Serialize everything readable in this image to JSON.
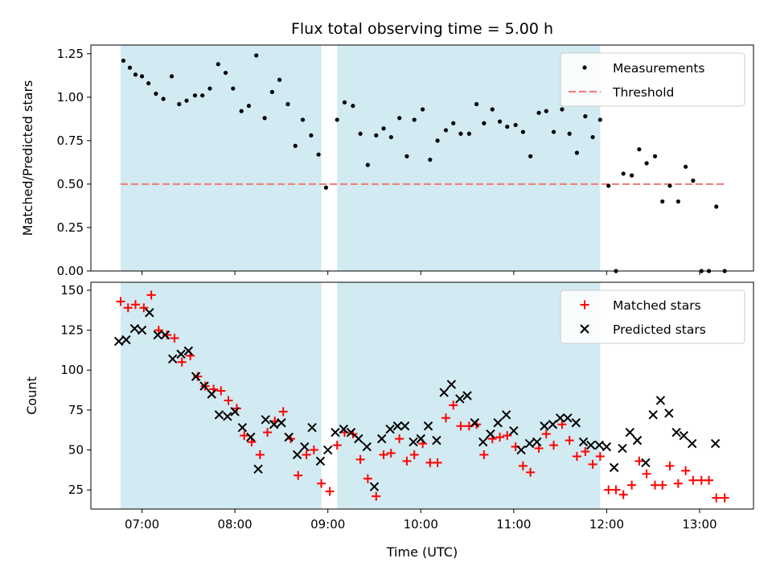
{
  "chart_data": {
    "title": "Flux total observing time = 5.00 h",
    "xlabel": "Time (UTC)",
    "x_ticks": [
      "07:00",
      "08:00",
      "09:00",
      "10:00",
      "11:00",
      "12:00",
      "13:00"
    ],
    "x_tick_values": [
      7,
      8,
      9,
      10,
      11,
      12,
      13
    ],
    "xlim": [
      6.45,
      13.58
    ],
    "shaded_intervals": [
      [
        6.77,
        8.93
      ],
      [
        9.1,
        11.93
      ]
    ],
    "colors": {
      "shade": "#add8e6",
      "measurement": "#000000",
      "threshold": "#f08080",
      "matched": "#ff0000",
      "predicted": "#000000"
    },
    "panels": [
      {
        "type": "scatter",
        "ylabel": "Matched/Predicted stars",
        "ylim": [
          0,
          1.3
        ],
        "y_ticks": [
          "0.00",
          "0.25",
          "0.50",
          "0.75",
          "1.00",
          "1.25"
        ],
        "y_tick_values": [
          0,
          0.25,
          0.5,
          0.75,
          1.0,
          1.25
        ],
        "legend_position": "top-right",
        "threshold": 0.5,
        "threshold_x_range": [
          6.77,
          13.28
        ],
        "legend": [
          "Measurements",
          "Threshold"
        ],
        "series": [
          {
            "name": "Measurements",
            "marker": "dot",
            "x": [
              6.8,
              6.87,
              6.93,
              7.0,
              7.07,
              7.15,
              7.23,
              7.32,
              7.4,
              7.48,
              7.57,
              7.65,
              7.73,
              7.82,
              7.9,
              7.98,
              8.07,
              8.15,
              8.23,
              8.32,
              8.4,
              8.48,
              8.57,
              8.65,
              8.73,
              8.82,
              8.9,
              8.98,
              9.1,
              9.18,
              9.27,
              9.35,
              9.43,
              9.52,
              9.6,
              9.68,
              9.77,
              9.85,
              9.93,
              10.02,
              10.1,
              10.18,
              10.27,
              10.35,
              10.43,
              10.52,
              10.6,
              10.68,
              10.77,
              10.85,
              10.93,
              11.02,
              11.1,
              11.18,
              11.27,
              11.35,
              11.43,
              11.52,
              11.6,
              11.68,
              11.77,
              11.85,
              11.93,
              12.02,
              12.1,
              12.18,
              12.27,
              12.35,
              12.43,
              12.52,
              12.6,
              12.68,
              12.77,
              12.85,
              12.93,
              13.02,
              13.1,
              13.18,
              13.27
            ],
            "y": [
              1.21,
              1.17,
              1.13,
              1.12,
              1.08,
              1.02,
              0.99,
              1.12,
              0.96,
              0.98,
              1.01,
              1.01,
              1.05,
              1.19,
              1.14,
              1.05,
              0.92,
              0.95,
              1.24,
              0.88,
              1.03,
              1.1,
              0.96,
              0.72,
              0.87,
              0.78,
              0.67,
              0.48,
              0.87,
              0.97,
              0.95,
              0.79,
              0.61,
              0.78,
              0.82,
              0.77,
              0.88,
              0.66,
              0.87,
              0.93,
              0.64,
              0.75,
              0.81,
              0.85,
              0.79,
              0.79,
              0.96,
              0.85,
              0.93,
              0.86,
              0.83,
              0.84,
              0.8,
              0.66,
              0.91,
              0.92,
              0.8,
              0.93,
              0.79,
              0.68,
              0.89,
              0.77,
              0.87,
              0.49,
              0.0,
              0.56,
              0.55,
              0.7,
              0.62,
              0.66,
              0.4,
              0.49,
              0.4,
              0.6,
              0.52,
              0.0,
              0.0,
              0.37,
              0.0
            ]
          }
        ]
      },
      {
        "type": "scatter",
        "ylabel": "Count",
        "ylim": [
          13,
          155
        ],
        "y_ticks": [
          "25",
          "50",
          "75",
          "100",
          "125",
          "150"
        ],
        "y_tick_values": [
          25,
          50,
          75,
          100,
          125,
          150
        ],
        "legend_position": "top-right",
        "legend": [
          "Matched stars",
          "Predicted stars"
        ],
        "series": [
          {
            "name": "Matched stars",
            "marker": "plus",
            "x": [
              6.77,
              6.85,
              6.93,
              7.02,
              7.1,
              7.18,
              7.27,
              7.35,
              7.43,
              7.52,
              7.6,
              7.68,
              7.77,
              7.85,
              7.93,
              8.02,
              8.1,
              8.18,
              8.27,
              8.35,
              8.43,
              8.52,
              8.6,
              8.68,
              8.77,
              8.85,
              8.93,
              9.02,
              9.1,
              9.18,
              9.27,
              9.35,
              9.43,
              9.52,
              9.6,
              9.68,
              9.77,
              9.85,
              9.93,
              10.02,
              10.1,
              10.18,
              10.27,
              10.35,
              10.43,
              10.52,
              10.6,
              10.68,
              10.77,
              10.85,
              10.93,
              11.02,
              11.1,
              11.18,
              11.27,
              11.35,
              11.43,
              11.52,
              11.6,
              11.68,
              11.77,
              11.85,
              11.93,
              12.02,
              12.1,
              12.18,
              12.27,
              12.35,
              12.43,
              12.52,
              12.6,
              12.68,
              12.77,
              12.85,
              12.93,
              13.02,
              13.1,
              13.18,
              13.27
            ],
            "y": [
              143,
              139,
              141,
              139,
              147,
              125,
              122,
              120,
              105,
              109,
              96,
              90,
              88,
              87,
              81,
              76,
              59,
              55,
              47,
              61,
              68,
              74,
              57,
              34,
              47,
              50,
              29,
              24,
              53,
              61,
              60,
              44,
              32,
              21,
              47,
              48,
              57,
              43,
              47,
              54,
              42,
              42,
              70,
              78,
              65,
              65,
              66,
              47,
              57,
              58,
              59,
              52,
              40,
              36,
              51,
              60,
              53,
              66,
              56,
              46,
              49,
              41,
              46,
              25,
              25,
              22,
              28,
              43,
              35,
              28,
              28,
              40,
              29,
              37,
              31,
              31,
              31,
              20,
              20
            ]
          },
          {
            "name": "Predicted stars",
            "marker": "x",
            "x": [
              6.75,
              6.83,
              6.92,
              7.0,
              7.08,
              7.17,
              7.25,
              7.33,
              7.42,
              7.5,
              7.58,
              7.67,
              7.75,
              7.83,
              7.92,
              8.0,
              8.08,
              8.17,
              8.25,
              8.33,
              8.42,
              8.5,
              8.58,
              8.67,
              8.75,
              8.83,
              8.92,
              9.0,
              9.08,
              9.17,
              9.25,
              9.33,
              9.42,
              9.5,
              9.58,
              9.67,
              9.75,
              9.83,
              9.92,
              10.0,
              10.08,
              10.17,
              10.25,
              10.33,
              10.42,
              10.5,
              10.58,
              10.67,
              10.75,
              10.83,
              10.92,
              11.0,
              11.08,
              11.17,
              11.25,
              11.33,
              11.42,
              11.5,
              11.58,
              11.67,
              11.75,
              11.83,
              11.92,
              12.0,
              12.08,
              12.17,
              12.25,
              12.33,
              12.42,
              12.5,
              12.58,
              12.67,
              12.75,
              12.83,
              12.92,
              13.17
            ],
            "y": [
              118,
              119,
              126,
              125,
              136,
              122,
              122,
              107,
              110,
              112,
              96,
              90,
              85,
              72,
              71,
              74,
              64,
              58,
              38,
              69,
              66,
              67,
              58,
              47,
              52,
              64,
              43,
              50,
              61,
              63,
              61,
              57,
              52,
              27,
              57,
              63,
              65,
              65,
              55,
              57,
              65,
              56,
              86,
              91,
              82,
              84,
              67,
              55,
              60,
              67,
              72,
              62,
              50,
              54,
              55,
              65,
              66,
              70,
              70,
              67,
              55,
              53,
              53,
              52,
              39,
              51,
              61,
              56,
              42,
              72,
              81,
              73,
              61,
              59,
              54,
              54
            ]
          }
        ]
      }
    ]
  }
}
